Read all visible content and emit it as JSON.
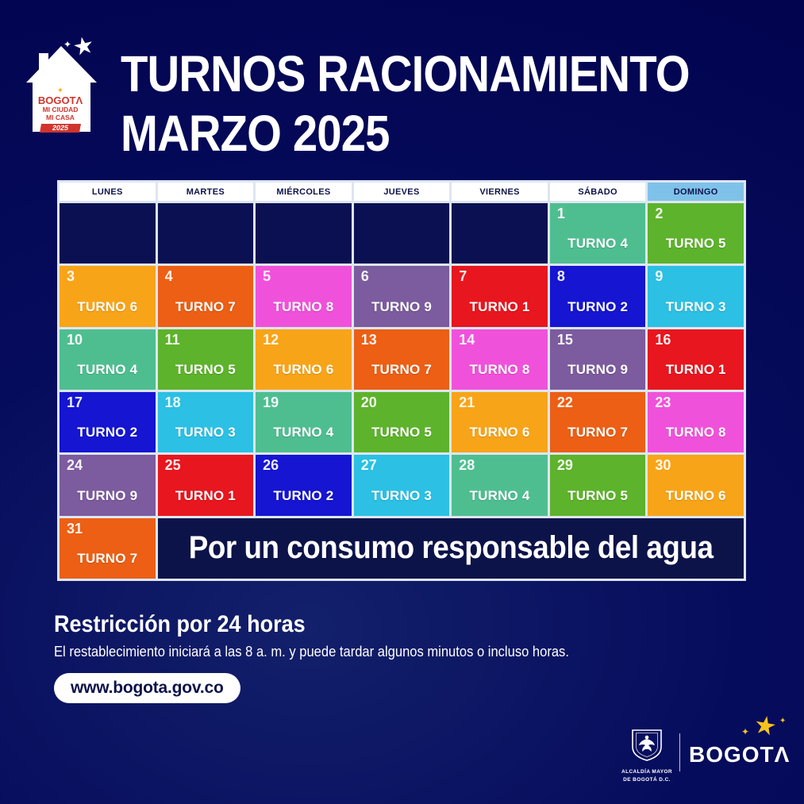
{
  "header": {
    "title_line1": "TURNOS RACIONAMIENTO",
    "title_line2": "MARZO 2025",
    "logo": {
      "brand": "BOGOTΛ",
      "line2": "MI CIUDAD",
      "line3": "MI CASA",
      "year": "2025",
      "star_icon": "star",
      "sparkle_icon": "sparkle"
    }
  },
  "calendar": {
    "weekdays": [
      "LUNES",
      "MARTES",
      "MIÉRCOLES",
      "JUEVES",
      "VIERNES",
      "SÁBADO",
      "DOMINGO"
    ],
    "leading_empty": 5,
    "days": [
      {
        "day": "1",
        "turno": 4,
        "label": "TURNO 4"
      },
      {
        "day": "2",
        "turno": 5,
        "label": "TURNO 5"
      },
      {
        "day": "3",
        "turno": 6,
        "label": "TURNO 6"
      },
      {
        "day": "4",
        "turno": 7,
        "label": "TURNO 7"
      },
      {
        "day": "5",
        "turno": 8,
        "label": "TURNO 8"
      },
      {
        "day": "6",
        "turno": 9,
        "label": "TURNO 9"
      },
      {
        "day": "7",
        "turno": 1,
        "label": "TURNO 1"
      },
      {
        "day": "8",
        "turno": 2,
        "label": "TURNO 2"
      },
      {
        "day": "9",
        "turno": 3,
        "label": "TURNO 3"
      },
      {
        "day": "10",
        "turno": 4,
        "label": "TURNO 4"
      },
      {
        "day": "11",
        "turno": 5,
        "label": "TURNO 5"
      },
      {
        "day": "12",
        "turno": 6,
        "label": "TURNO 6"
      },
      {
        "day": "13",
        "turno": 7,
        "label": "TURNO 7"
      },
      {
        "day": "14",
        "turno": 8,
        "label": "TURNO 8"
      },
      {
        "day": "15",
        "turno": 9,
        "label": "TURNO 9"
      },
      {
        "day": "16",
        "turno": 1,
        "label": "TURNO 1"
      },
      {
        "day": "17",
        "turno": 2,
        "label": "TURNO 2"
      },
      {
        "day": "18",
        "turno": 3,
        "label": "TURNO 3"
      },
      {
        "day": "19",
        "turno": 4,
        "label": "TURNO 4"
      },
      {
        "day": "20",
        "turno": 5,
        "label": "TURNO 5"
      },
      {
        "day": "21",
        "turno": 6,
        "label": "TURNO 6"
      },
      {
        "day": "22",
        "turno": 7,
        "label": "TURNO 7"
      },
      {
        "day": "23",
        "turno": 8,
        "label": "TURNO 8"
      },
      {
        "day": "24",
        "turno": 9,
        "label": "TURNO 9"
      },
      {
        "day": "25",
        "turno": 1,
        "label": "TURNO 1"
      },
      {
        "day": "26",
        "turno": 2,
        "label": "TURNO 2"
      },
      {
        "day": "27",
        "turno": 3,
        "label": "TURNO 3"
      },
      {
        "day": "28",
        "turno": 4,
        "label": "TURNO 4"
      },
      {
        "day": "29",
        "turno": 5,
        "label": "TURNO 5"
      },
      {
        "day": "30",
        "turno": 6,
        "label": "TURNO 6"
      },
      {
        "day": "31",
        "turno": 7,
        "label": "TURNO 7"
      }
    ],
    "message": "Por un consumo responsable del agua"
  },
  "footer": {
    "restriction_title": "Restricción por 24 horas",
    "restriction_text": "El restablecimiento iniciará a las 8 a. m. y puede tardar algunos minutos o incluso horas.",
    "website": "www.bogota.gov.co",
    "alcaldia_line1": "ALCALDÍA MAYOR",
    "alcaldia_line2": "DE BOGOTÁ D.C.",
    "wordmark": "BOGOT",
    "wordmark_lambda": "Λ"
  },
  "colors": {
    "background_navy": "#060c5c",
    "empty_cell_navy": "#0b1052",
    "message_cell_navy": "#0c1349",
    "grid_line": "#dde6f1",
    "domingo_header": "#7fc2e9",
    "header_text_navy": "#0d1349",
    "brand_red": "#cf352d",
    "brand_yellow": "#f5c41e",
    "turno_colors": {
      "1": "#e8161e",
      "2": "#1515d2",
      "3": "#2bc0e4",
      "4": "#4ebe91",
      "5": "#5db32b",
      "6": "#f8a418",
      "7": "#ec5f14",
      "8": "#f051da",
      "9": "#7c5b9e"
    }
  }
}
